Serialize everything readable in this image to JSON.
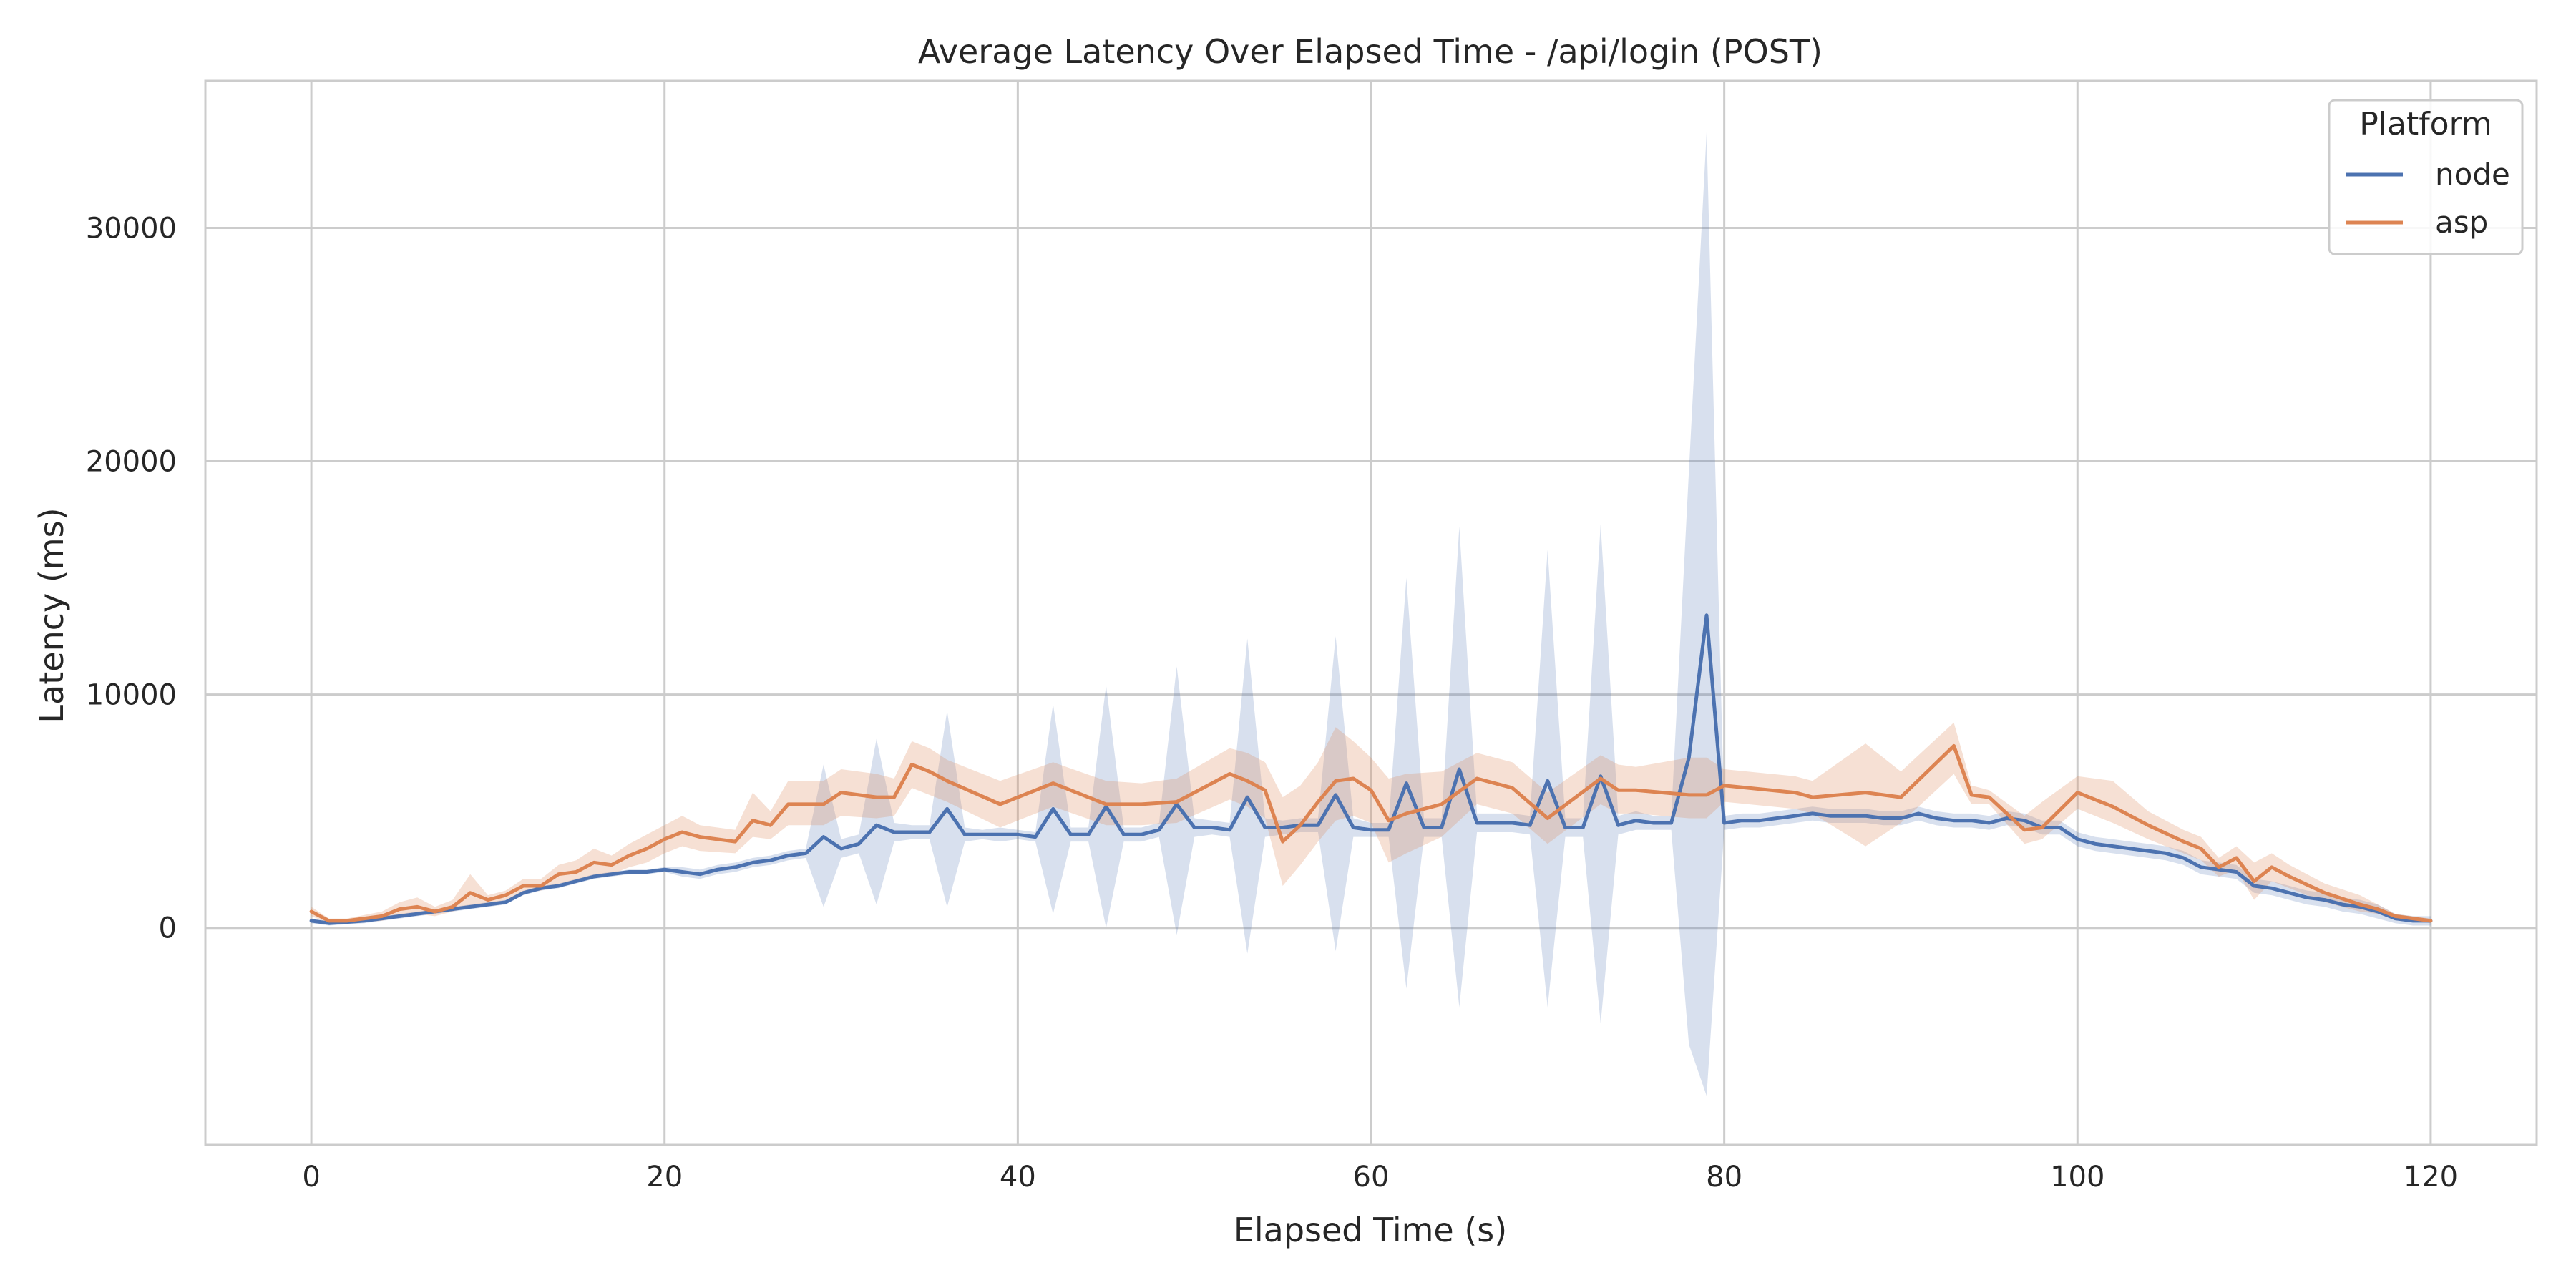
{
  "chart_data": {
    "type": "line",
    "title": "Average Latency Over Elapsed Time - /api/login (POST)",
    "xlabel": "Elapsed Time (s)",
    "ylabel": "Latency (ms)",
    "xlim": [
      -6,
      126
    ],
    "ylim": [
      -9300,
      36300
    ],
    "xticks": [
      0,
      20,
      40,
      60,
      80,
      100,
      120
    ],
    "yticks": [
      0,
      10000,
      20000,
      30000
    ],
    "grid": true,
    "legend": {
      "title": "Platform",
      "position": "top-right"
    },
    "series": [
      {
        "name": "node",
        "color": "#4c72b0",
        "band_opacity": 0.22,
        "x": [
          0,
          1,
          2,
          3,
          4,
          5,
          6,
          7,
          8,
          9,
          10,
          11,
          12,
          13,
          14,
          15,
          16,
          17,
          18,
          19,
          20,
          21,
          22,
          23,
          24,
          25,
          26,
          27,
          28,
          29,
          30,
          31,
          32,
          33,
          34,
          35,
          36,
          37,
          38,
          39,
          40,
          41,
          42,
          43,
          44,
          45,
          46,
          47,
          48,
          49,
          50,
          51,
          52,
          53,
          54,
          55,
          56,
          57,
          58,
          59,
          60,
          61,
          62,
          63,
          64,
          65,
          66,
          67,
          68,
          69,
          70,
          71,
          72,
          73,
          74,
          75,
          76,
          77,
          78,
          79,
          80,
          81,
          82,
          83,
          84,
          85,
          86,
          87,
          88,
          89,
          90,
          91,
          92,
          93,
          94,
          95,
          96,
          97,
          98,
          99,
          100,
          101,
          102,
          103,
          104,
          105,
          106,
          107,
          108,
          109,
          110,
          111,
          112,
          113,
          114,
          115,
          116,
          117,
          118,
          119,
          120
        ],
        "y": [
          300,
          200,
          250,
          300,
          400,
          500,
          600,
          700,
          800,
          900,
          1000,
          1100,
          1500,
          1700,
          1800,
          2000,
          2200,
          2300,
          2400,
          2400,
          2500,
          2400,
          2300,
          2500,
          2600,
          2800,
          2900,
          3100,
          3200,
          3900,
          3400,
          3600,
          4400,
          4100,
          4100,
          4100,
          5100,
          4000,
          4000,
          4000,
          4000,
          3900,
          5100,
          4000,
          4000,
          5200,
          4000,
          4000,
          4200,
          5300,
          4300,
          4300,
          4200,
          5600,
          4300,
          4300,
          4400,
          4400,
          5700,
          4300,
          4200,
          4200,
          6200,
          4300,
          4300,
          6800,
          4500,
          4500,
          4500,
          4400,
          6300,
          4300,
          4300,
          6500,
          4400,
          4600,
          4500,
          4500,
          7300,
          13400,
          4500,
          4600,
          4600,
          4700,
          4800,
          4900,
          4800,
          4800,
          4800,
          4700,
          4700,
          4900,
          4700,
          4600,
          4600,
          4500,
          4700,
          4600,
          4300,
          4300,
          3800,
          3600,
          3500,
          3400,
          3300,
          3200,
          3000,
          2600,
          2500,
          2400,
          1800,
          1700,
          1500,
          1300,
          1200,
          1000,
          900,
          700,
          400,
          300,
          300
        ],
        "lower": [
          200,
          100,
          150,
          200,
          300,
          400,
          500,
          600,
          700,
          800,
          900,
          1000,
          1400,
          1600,
          1700,
          1900,
          2100,
          2200,
          2300,
          2300,
          2400,
          2200,
          2100,
          2300,
          2400,
          2600,
          2700,
          2900,
          3000,
          900,
          3000,
          3200,
          1000,
          3700,
          3800,
          3800,
          900,
          3700,
          3800,
          3700,
          3800,
          3700,
          600,
          3700,
          3700,
          0,
          3700,
          3700,
          3900,
          -300,
          3900,
          4000,
          3900,
          -1100,
          3900,
          4000,
          4100,
          4100,
          -1000,
          3900,
          3900,
          3900,
          -2600,
          3900,
          3900,
          -3400,
          4100,
          4100,
          4100,
          4000,
          -3400,
          3900,
          3900,
          -4100,
          4000,
          4200,
          4200,
          4200,
          -5000,
          -7200,
          4200,
          4300,
          4300,
          4400,
          4500,
          4600,
          4500,
          4500,
          4500,
          4400,
          4400,
          4600,
          4400,
          4300,
          4300,
          4200,
          4400,
          4300,
          4000,
          4000,
          3500,
          3300,
          3200,
          3100,
          3000,
          2900,
          2700,
          2300,
          2200,
          2100,
          1500,
          1400,
          1200,
          1000,
          900,
          700,
          600,
          400,
          200,
          100,
          100
        ],
        "upper": [
          400,
          300,
          350,
          400,
          500,
          600,
          700,
          800,
          900,
          1000,
          1100,
          1200,
          1600,
          1800,
          1900,
          2100,
          2300,
          2400,
          2500,
          2500,
          2600,
          2600,
          2500,
          2700,
          2800,
          3000,
          3100,
          3300,
          3400,
          7000,
          3800,
          4000,
          8100,
          4500,
          4400,
          4400,
          9300,
          4300,
          4200,
          4300,
          4200,
          4100,
          9600,
          4300,
          4300,
          10400,
          4300,
          4300,
          4500,
          11200,
          4700,
          4600,
          4500,
          12400,
          4700,
          4600,
          4700,
          4700,
          12500,
          4700,
          4500,
          4500,
          15000,
          4700,
          4700,
          17200,
          4900,
          4900,
          4900,
          4800,
          16200,
          4700,
          4700,
          17300,
          4800,
          5000,
          4800,
          4800,
          19600,
          34100,
          4800,
          4900,
          4900,
          5000,
          5100,
          5200,
          5100,
          5100,
          5100,
          5000,
          5000,
          5200,
          5000,
          4900,
          4900,
          4800,
          5000,
          4900,
          4600,
          4600,
          4100,
          3900,
          3800,
          3700,
          3600,
          3500,
          3300,
          2900,
          2800,
          2700,
          2100,
          2000,
          1800,
          1600,
          1500,
          1300,
          1200,
          1000,
          600,
          500,
          500
        ]
      },
      {
        "name": "asp",
        "color": "#dd8452",
        "band_opacity": 0.25,
        "x": [
          0,
          1,
          2,
          4,
          5,
          6,
          7,
          8,
          9,
          10,
          11,
          12,
          13,
          14,
          15,
          16,
          17,
          18,
          19,
          20,
          21,
          22,
          24,
          25,
          26,
          27,
          29,
          30,
          32,
          33,
          34,
          35,
          36,
          39,
          42,
          45,
          47,
          49,
          52,
          53,
          54,
          55,
          56,
          57,
          58,
          59,
          60,
          61,
          62,
          64,
          66,
          68,
          70,
          73,
          74,
          75,
          78,
          79,
          80,
          84,
          85,
          88,
          90,
          93,
          94,
          95,
          97,
          98,
          100,
          102,
          104,
          106,
          107,
          108,
          109,
          110,
          111,
          112,
          114,
          116,
          117,
          118,
          120
        ],
        "y": [
          700,
          300,
          300,
          500,
          800,
          900,
          700,
          900,
          1500,
          1200,
          1400,
          1800,
          1800,
          2300,
          2400,
          2800,
          2700,
          3100,
          3400,
          3800,
          4100,
          3900,
          3700,
          4600,
          4400,
          5300,
          5300,
          5800,
          5600,
          5600,
          7000,
          6700,
          6300,
          5300,
          6200,
          5300,
          5300,
          5400,
          6600,
          6300,
          5900,
          3700,
          4400,
          5400,
          6300,
          6400,
          5900,
          4600,
          4900,
          5300,
          6400,
          6000,
          4700,
          6400,
          5900,
          5900,
          5700,
          5700,
          6100,
          5800,
          5600,
          5800,
          5600,
          7800,
          5700,
          5600,
          4200,
          4300,
          5800,
          5200,
          4400,
          3700,
          3400,
          2600,
          3000,
          2000,
          2600,
          2200,
          1500,
          1000,
          800,
          500,
          300
        ],
        "lower": [
          500,
          200,
          200,
          300,
          500,
          600,
          500,
          700,
          900,
          1000,
          1200,
          1500,
          1600,
          1900,
          2000,
          2200,
          2300,
          2600,
          2800,
          3200,
          3500,
          3300,
          3200,
          3900,
          3800,
          4400,
          4400,
          4800,
          4700,
          4800,
          6000,
          5700,
          5400,
          4300,
          5200,
          4400,
          4400,
          4500,
          5500,
          5200,
          4700,
          1800,
          2700,
          3700,
          4600,
          4800,
          4500,
          2800,
          3200,
          3900,
          5300,
          4900,
          3600,
          5300,
          4900,
          4900,
          4700,
          4700,
          5400,
          5100,
          4900,
          3500,
          4500,
          6600,
          5300,
          5300,
          3600,
          3800,
          5100,
          4500,
          3800,
          3200,
          2900,
          2200,
          2500,
          1200,
          2000,
          1700,
          1100,
          700,
          600,
          400,
          200
        ],
        "upper": [
          900,
          400,
          400,
          700,
          1100,
          1300,
          900,
          1200,
          2300,
          1400,
          1600,
          2100,
          2100,
          2700,
          2900,
          3400,
          3100,
          3600,
          4000,
          4400,
          4800,
          4400,
          4200,
          5800,
          5000,
          6300,
          6300,
          6800,
          6600,
          6400,
          8000,
          7700,
          7200,
          6300,
          7100,
          6300,
          6200,
          6400,
          7700,
          7500,
          7100,
          5600,
          6100,
          7100,
          8600,
          8000,
          7300,
          6400,
          6600,
          6700,
          7500,
          7100,
          5800,
          7400,
          7000,
          6900,
          7300,
          7300,
          6800,
          6500,
          6300,
          7900,
          6700,
          8800,
          6100,
          5900,
          4800,
          5400,
          6500,
          6300,
          5000,
          4200,
          3900,
          3000,
          3500,
          2800,
          3200,
          2700,
          1900,
          1400,
          1000,
          600,
          400
        ]
      }
    ]
  }
}
